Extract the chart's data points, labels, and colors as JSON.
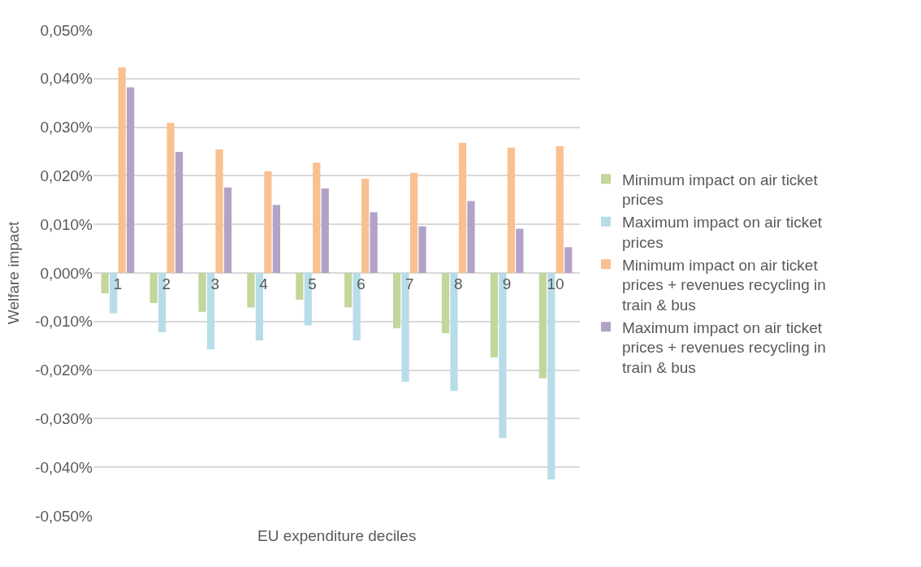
{
  "chart_data": {
    "type": "bar",
    "xlabel": "EU expenditure deciles",
    "ylabel": "Welfare impact",
    "categories": [
      "1",
      "2",
      "3",
      "4",
      "5",
      "6",
      "7",
      "8",
      "9",
      "10"
    ],
    "series": [
      {
        "name": "Minimum impact on air ticket prices",
        "color": "#c3d69b",
        "values": [
          -0.0042,
          -0.0062,
          -0.008,
          -0.0071,
          -0.0055,
          -0.0071,
          -0.0114,
          -0.0124,
          -0.0174,
          -0.0217
        ]
      },
      {
        "name": "Maximum impact on air ticket prices",
        "color": "#b7dde8",
        "values": [
          -0.0083,
          -0.0122,
          -0.0157,
          -0.0139,
          -0.0108,
          -0.0139,
          -0.0224,
          -0.0243,
          -0.034,
          -0.0425
        ]
      },
      {
        "name": "Minimum impact on air ticket prices + revenues recycling in train & bus",
        "color": "#fac090",
        "values": [
          0.0423,
          0.0309,
          0.0254,
          0.0209,
          0.0227,
          0.0194,
          0.0206,
          0.0268,
          0.0258,
          0.0261
        ]
      },
      {
        "name": "Maximum impact on air ticket prices + revenues recycling in train & bus",
        "color": "#b3a2c7",
        "values": [
          0.0382,
          0.0249,
          0.0176,
          0.014,
          0.0174,
          0.0125,
          0.0096,
          0.0148,
          0.0091,
          0.0053
        ]
      }
    ],
    "ylim": [
      -0.05,
      0.05
    ],
    "yticks": [
      {
        "value": -0.05,
        "label": "-0,050%"
      },
      {
        "value": -0.04,
        "label": "-0,040%"
      },
      {
        "value": -0.03,
        "label": "-0,030%"
      },
      {
        "value": -0.02,
        "label": "-0,020%"
      },
      {
        "value": -0.01,
        "label": "-0,010%"
      },
      {
        "value": 0,
        "label": "0,000%"
      },
      {
        "value": 0.01,
        "label": "0,010%"
      },
      {
        "value": 0.02,
        "label": "0,020%"
      },
      {
        "value": 0.03,
        "label": "0,030%"
      },
      {
        "value": 0.04,
        "label": "0,040%"
      },
      {
        "value": 0.05,
        "label": "0,050%"
      }
    ],
    "grid": "y",
    "legend": "right"
  }
}
